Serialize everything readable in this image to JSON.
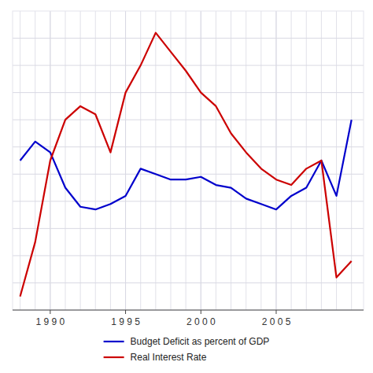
{
  "chart_data": {
    "type": "line",
    "x": [
      1988,
      1989,
      1990,
      1991,
      1992,
      1993,
      1994,
      1995,
      1996,
      1997,
      1998,
      1999,
      2000,
      2001,
      2002,
      2003,
      2004,
      2005,
      2006,
      2007,
      2008,
      2009,
      2010
    ],
    "series": [
      {
        "name": "Budget Deficit as percent of GDP",
        "color": "#0000cc",
        "values": [
          5.5,
          6.2,
          5.8,
          4.5,
          3.8,
          3.7,
          3.9,
          4.2,
          5.2,
          5.0,
          4.8,
          4.8,
          4.9,
          4.6,
          4.5,
          4.1,
          3.9,
          3.7,
          4.2,
          4.5,
          5.5,
          4.2,
          7.0
        ]
      },
      {
        "name": "Real Interest Rate",
        "color": "#cc0000",
        "values": [
          0.5,
          2.5,
          5.5,
          7.0,
          7.5,
          7.2,
          5.8,
          8.0,
          9.0,
          10.2,
          9.5,
          8.8,
          8.0,
          7.5,
          6.5,
          5.8,
          5.2,
          4.8,
          4.6,
          5.2,
          5.5,
          1.2,
          1.8
        ]
      }
    ],
    "xlim": [
      1987.5,
      2010.8
    ],
    "xticks": [
      {
        "value": 1990,
        "label": "1 9 9 0"
      },
      {
        "value": 1995,
        "label": "1 9 9 5"
      },
      {
        "value": 2000,
        "label": "2 0 0 0"
      },
      {
        "value": 2005,
        "label": "2 0 0 5"
      }
    ],
    "ylim": [
      0,
      11
    ],
    "yticks": [
      1,
      2,
      3,
      4,
      5,
      6,
      7,
      8,
      9,
      10
    ],
    "grid": true,
    "legend": "bottom",
    "tick_labels": "x"
  }
}
